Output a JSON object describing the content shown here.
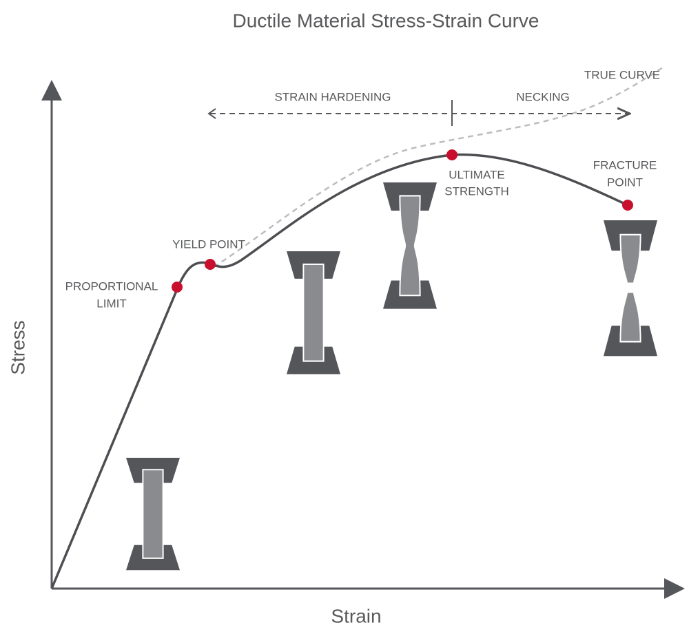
{
  "title": "Ductile Material Stress-Strain Curve",
  "axes": {
    "x": "Strain",
    "y": "Stress"
  },
  "regions": [
    {
      "label": "STRAIN HARDENING"
    },
    {
      "label": "NECKING"
    }
  ],
  "true_curve": "TRUE CURVE",
  "points": [
    {
      "label": [
        "PROPORTIONAL",
        "LIMIT"
      ]
    },
    {
      "label": [
        "YIELD POINT"
      ]
    },
    {
      "label": [
        "ULTIMATE",
        "STRENGTH"
      ]
    },
    {
      "label": [
        "FRACTURE",
        "POINT"
      ]
    }
  ]
}
